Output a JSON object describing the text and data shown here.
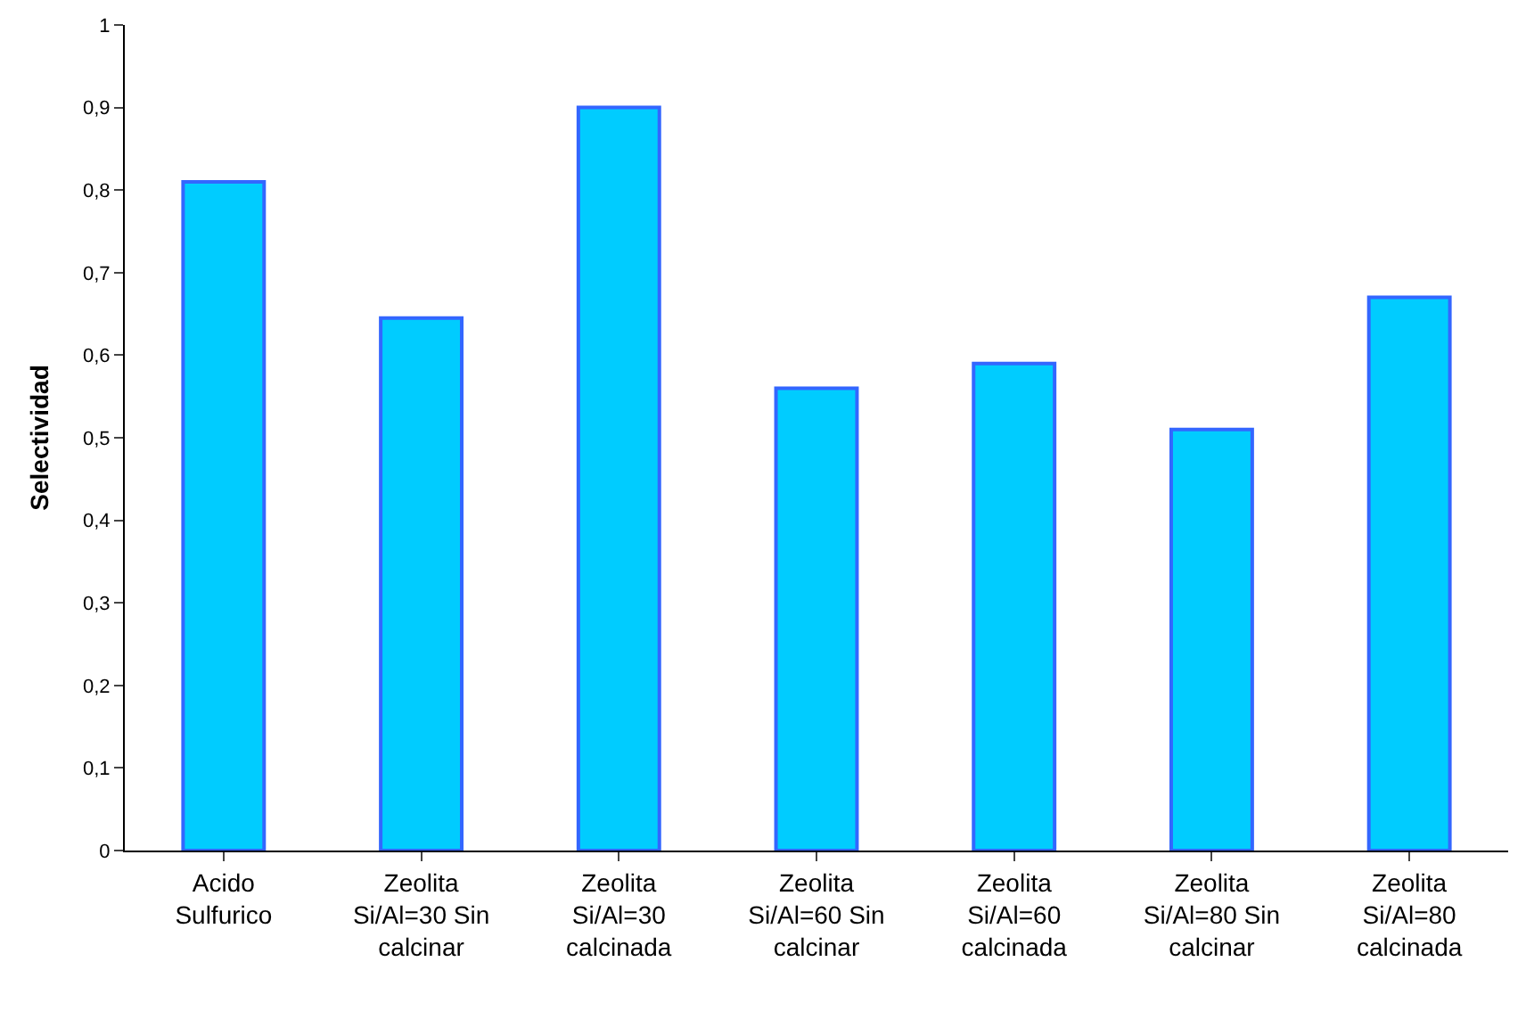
{
  "chart_data": {
    "type": "bar",
    "ylabel": "Selectividad",
    "categories": [
      "Acido Sulfurico",
      "Zeolita Si/Al=30 Sin calcinar",
      "Zeolita Si/Al=30 calcinada",
      "Zeolita Si/Al=60 Sin calcinar",
      "Zeolita Si/Al=60 calcinada",
      "Zeolita Si/Al=80 Sin calcinar",
      "Zeolita Si/Al=80 calcinada"
    ],
    "series": [
      {
        "color": "#00ccff",
        "values": [
          0.81,
          0.645,
          0.9,
          0.56,
          0.59,
          0.51,
          0.67
        ]
      }
    ],
    "ylim": [
      0,
      1
    ],
    "yticks": [
      0,
      {
        "value": 0.1,
        "label": "0,1"
      },
      {
        "value": 0.2,
        "label": "0,2"
      },
      {
        "value": 0.3,
        "label": "0,3"
      },
      {
        "value": 0.4,
        "label": "0,4"
      },
      {
        "value": 0.5,
        "label": "0,5"
      },
      {
        "value": 0.6,
        "label": "0,6"
      },
      {
        "value": 0.7,
        "label": "0,7"
      },
      {
        "value": 0.8,
        "label": "0,8"
      },
      {
        "value": 0.9,
        "label": "0,9"
      },
      1
    ],
    "grid": false,
    "legend": false
  }
}
